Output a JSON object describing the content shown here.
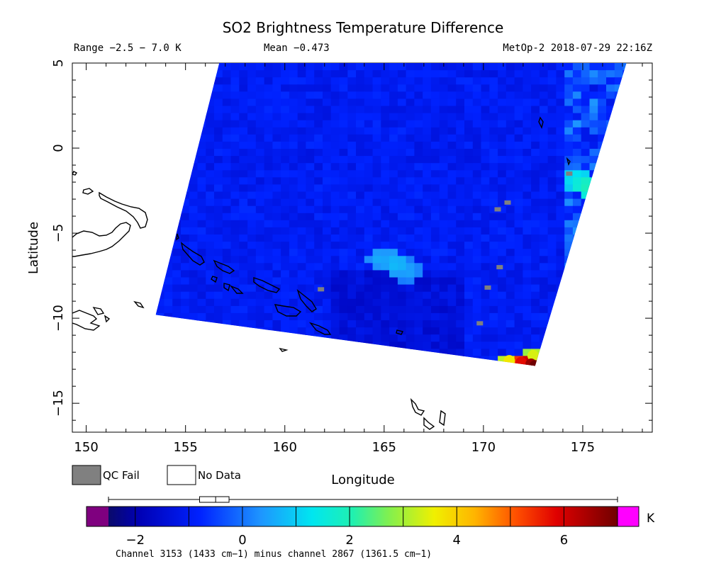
{
  "title": "SO2 Brightness Temperature Difference",
  "range_text": "Range −2.5 − 7.0 K",
  "mean_text": "Mean −0.473",
  "sat_text": "MetOp-2 2018-07-29 22:16Z",
  "xlabel": "Longitude",
  "ylabel": "Latitude",
  "legend_qc": "QC Fail",
  "legend_nodata": "No Data",
  "colorbar_unit": "K",
  "colorbar_caption": "Channel 3153 (1433 cm−1) minus channel 2867 (1361.5 cm−1)",
  "chart_data": {
    "type": "heatmap",
    "title": "SO2 Brightness Temperature Difference",
    "xlabel": "Longitude",
    "ylabel": "Latitude",
    "xlim": [
      149.3,
      178.5
    ],
    "ylim": [
      -16.7,
      5
    ],
    "x_ticks": [
      150,
      155,
      160,
      165,
      170,
      175
    ],
    "x_tick_labels": [
      "150",
      "155",
      "160",
      "165",
      "170",
      "175"
    ],
    "y_ticks": [
      5,
      0,
      -5,
      -10,
      -15
    ],
    "y_tick_labels": [
      "5",
      "0",
      "−5",
      "−10",
      "−15"
    ],
    "value_range": [
      -2.5,
      7.0
    ],
    "mean": -0.473,
    "swath_corners": {
      "top_left": [
        156.7,
        5
      ],
      "top_right": [
        177.2,
        5
      ],
      "bottom_right": [
        172.6,
        -12.8
      ],
      "bottom_left": [
        153.5,
        -9.8
      ]
    },
    "background_value": -1.0,
    "highlights": [
      {
        "lon": 164.6,
        "lat": -6.3,
        "value": 0.7
      },
      {
        "lon": 165.4,
        "lat": -6.6,
        "value": 0.9
      },
      {
        "lon": 166.0,
        "lat": -7.0,
        "value": 0.6
      },
      {
        "lon": 174.5,
        "lat": -1.6,
        "value": 1.5
      },
      {
        "lon": 175.0,
        "lat": -2.0,
        "value": 2.0
      },
      {
        "lon": 172.5,
        "lat": -12.2,
        "value": 3.4
      },
      {
        "lon": 171.3,
        "lat": -12.5,
        "value": 3.7
      },
      {
        "lon": 171.9,
        "lat": -12.6,
        "value": 5.8
      },
      {
        "lon": 172.4,
        "lat": -12.7,
        "value": 6.6
      },
      {
        "lon": 172.6,
        "lat": -12.8,
        "value": 7.0
      }
    ],
    "qc_fail_points": [
      {
        "lon": 171.2,
        "lat": -3.2
      },
      {
        "lon": 170.7,
        "lat": -3.6
      },
      {
        "lon": 174.3,
        "lat": -1.5
      },
      {
        "lon": 170.8,
        "lat": -7.0
      },
      {
        "lon": 170.2,
        "lat": -8.2
      },
      {
        "lon": 169.8,
        "lat": -10.3
      },
      {
        "lon": 161.8,
        "lat": -8.3
      }
    ],
    "colorbar": {
      "min": -2.5,
      "max": 7.0,
      "ticks": [
        -2,
        0,
        2,
        4,
        6
      ],
      "tick_labels": [
        "−2",
        "0",
        "2",
        "4",
        "6"
      ],
      "under_color": "#7f007f",
      "over_color": "#ff00ff",
      "box_plot": {
        "min": -2.5,
        "q1": -0.8,
        "median": -0.5,
        "q3": -0.25,
        "max": 7.0
      }
    },
    "colors": {
      "qc_fail": "#808080",
      "no_data": "#ffffff",
      "coastline": "#000000"
    }
  }
}
